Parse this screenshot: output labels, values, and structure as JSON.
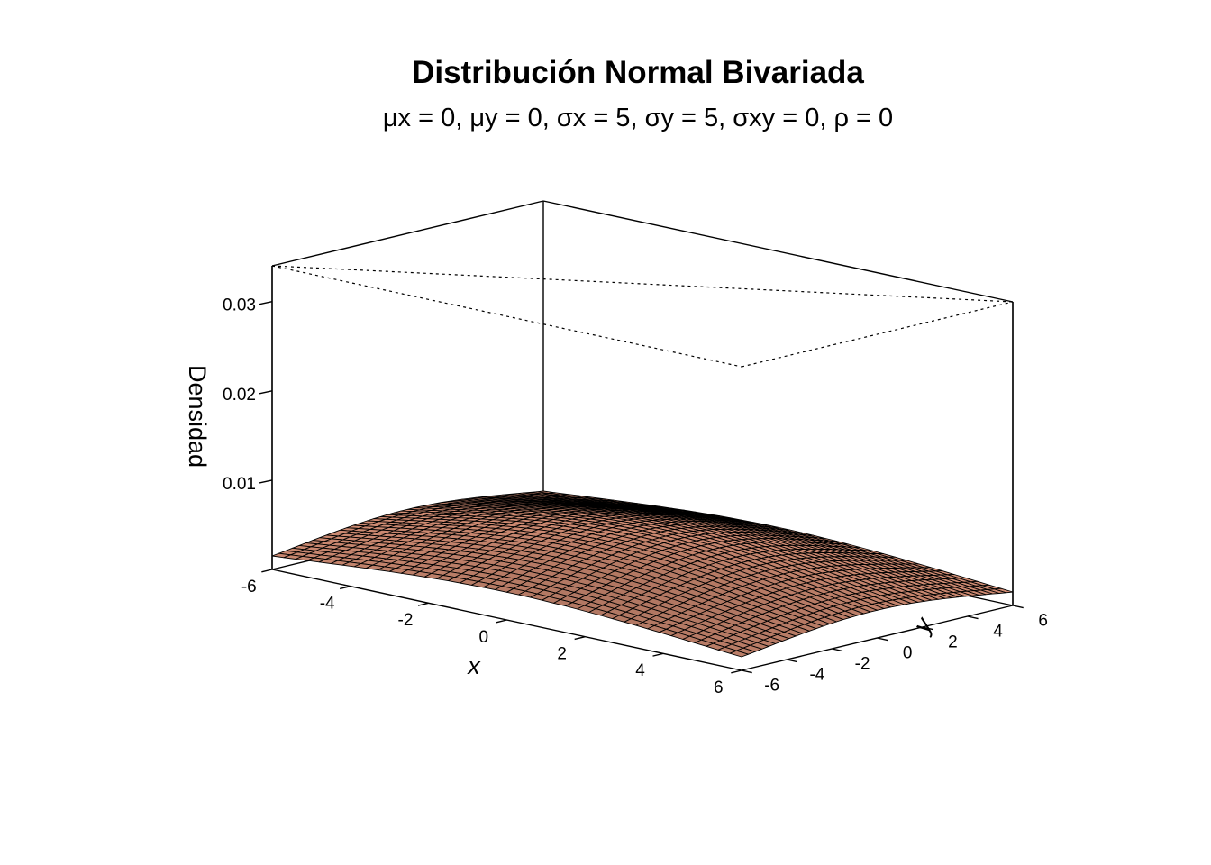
{
  "chart_data": {
    "type": "surface3d",
    "title": "Distribución Normal Bivariada",
    "subtitle": {
      "mu_x": "μx = 0",
      "mu_y": "μy = 0",
      "sigma_x": "σx = 5",
      "sigma_y": "σy = 5",
      "sigma_xy": "σxy = 0",
      "rho": "ρ = 0",
      "params": {
        "mu_x": 0,
        "mu_y": 0,
        "sigma_x": 5,
        "sigma_y": 5,
        "sigma_xy": 0,
        "rho": 0
      }
    },
    "xlabel": "x",
    "ylabel": "y",
    "zlabel": "Densidad",
    "xlim": [
      -6,
      6
    ],
    "ylim": [
      -6,
      6
    ],
    "zlim": [
      0,
      0.034
    ],
    "x_ticks": [
      "-6",
      "-4",
      "-2",
      "0",
      "2",
      "4",
      "6"
    ],
    "y_ticks": [
      "-6",
      "-4",
      "-2",
      "0",
      "2",
      "4",
      "6"
    ],
    "z_ticks": [
      "0.01",
      "0.02",
      "0.03"
    ],
    "grid_n": 40,
    "surface_color": "#e59a7f",
    "line_color": "#000000"
  }
}
